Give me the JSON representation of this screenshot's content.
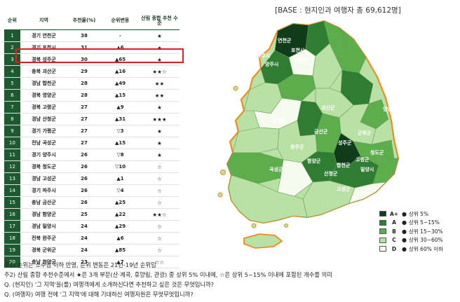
{
  "base_label": "[BASE : 현지인과 여행자 총 69,612명]",
  "table": {
    "headers": {
      "rank": "순위",
      "region": "지역",
      "score": "추천율(%)",
      "change": "순위변동",
      "forest": "산림 종합 추천 수준"
    },
    "rows": [
      {
        "rank": "1",
        "region": "경기 연천군",
        "score": "38",
        "change": "-",
        "stars": "★"
      },
      {
        "rank": "2",
        "region": "경기 포천시",
        "score": "31",
        "change": "▲6",
        "stars": "★"
      },
      {
        "rank": "3",
        "region": "경북 성주군",
        "score": "30",
        "change": "▲65",
        "stars": "★"
      },
      {
        "rank": "4",
        "region": "충북 괴산군",
        "score": "29",
        "change": "▲16",
        "stars": "★★☆"
      },
      {
        "rank": "5",
        "region": "경남 합천군",
        "score": "28",
        "change": "▲49",
        "stars": "★★"
      },
      {
        "rank": "6",
        "region": "경북 영양군",
        "score": "28",
        "change": "▲15",
        "stars": "★★"
      },
      {
        "rank": "7",
        "region": "경북 고령군",
        "score": "27",
        "change": "▲9",
        "stars": "★"
      },
      {
        "rank": "8",
        "region": "경남 산청군",
        "score": "27",
        "change": "▲31",
        "stars": "★★★"
      },
      {
        "rank": "9",
        "region": "경기 가평군",
        "score": "27",
        "change": "▽3",
        "stars": "★"
      },
      {
        "rank": "10",
        "region": "전남 곡성군",
        "score": "27",
        "change": "▲15",
        "stars": "★"
      },
      {
        "rank": "11",
        "region": "경기 양주시",
        "score": "26",
        "change": "▽8",
        "stars": "★"
      },
      {
        "rank": "12",
        "region": "경북 청도군",
        "score": "26",
        "change": "▽10",
        "stars": "☆"
      },
      {
        "rank": "13",
        "region": "경남 고성군",
        "score": "26",
        "change": "▲1",
        "stars": "☆"
      },
      {
        "rank": "14",
        "region": "경기 파주시",
        "score": "26",
        "change": "▽4",
        "stars": "☆"
      },
      {
        "rank": "15",
        "region": "충남 금산군",
        "score": "26",
        "change": "▲25",
        "stars": "☆"
      },
      {
        "rank": "16",
        "region": "경남 함양군",
        "score": "25",
        "change": "▲22",
        "stars": "★★☆"
      },
      {
        "rank": "17",
        "region": "경남 밀양시",
        "score": "24",
        "change": "▲29",
        "stars": "☆"
      },
      {
        "rank": "18",
        "region": "전북 완주군",
        "score": "24",
        "change": "▲6",
        "stars": "☆"
      },
      {
        "rank": "19",
        "region": "경북 군위군",
        "score": "24",
        "change": "▲85",
        "stars": "☆"
      },
      {
        "rank": "20",
        "region": "충남 청양군",
        "score": "23",
        "change": "▲7",
        "stars": "☆☆"
      }
    ]
  },
  "map": {
    "labels": {
      "yeoncheon": "연천군",
      "pocheon": "포천시",
      "paju": "파주시",
      "gapyeong": "가평군",
      "yangju": "양주시",
      "goesan": "괴산군",
      "yeongyang": "영양군",
      "geumsan": "금산군",
      "cheongyang": "청양군",
      "gunwi": "군위군",
      "wanju": "완주군",
      "seongju": "성주군",
      "goryeong": "고령군",
      "cheongdo": "청도군",
      "hamyang": "함양군",
      "hapcheon": "합천군",
      "sancheong": "산청군",
      "miryang": "밀양시",
      "goseong": "고성군",
      "gokseong": "곡성군"
    }
  },
  "legend": [
    {
      "grade": "A+",
      "label": "상위 5%",
      "color": "#0f3d1c"
    },
    {
      "grade": "A",
      "label": "상위 5~15%",
      "color": "#2e7d32"
    },
    {
      "grade": "B",
      "label": "상위 15~30%",
      "color": "#5cae4d"
    },
    {
      "grade": "C",
      "label": "상위 30~60%",
      "color": "#b9e0a5"
    },
    {
      "grade": "D",
      "label": "상위 60% 이하",
      "color": "#f7fbef"
    }
  ],
  "notes": [
    "주1) 순위는 소수점 이하 반영, 순위 변동은 21년-19년 순위임",
    "주2) 산림 종합 추천수준에서 ★은 3개 부문(산·계곡, 휴양림, 관광) 중 상위 5% 이내에, ☆은 상위 5~15% 이내에 포함된 개수를 의미",
    "Q. (현지인) '그 지역'을(를) 여행객에게 소개하신다면 추천하고 싶은 것은 무엇입니까?",
    "Q. (여행자) 여행 전에 '그 지역'에 대해 기대하신 여행자원은 무엇무엇입니까?"
  ]
}
